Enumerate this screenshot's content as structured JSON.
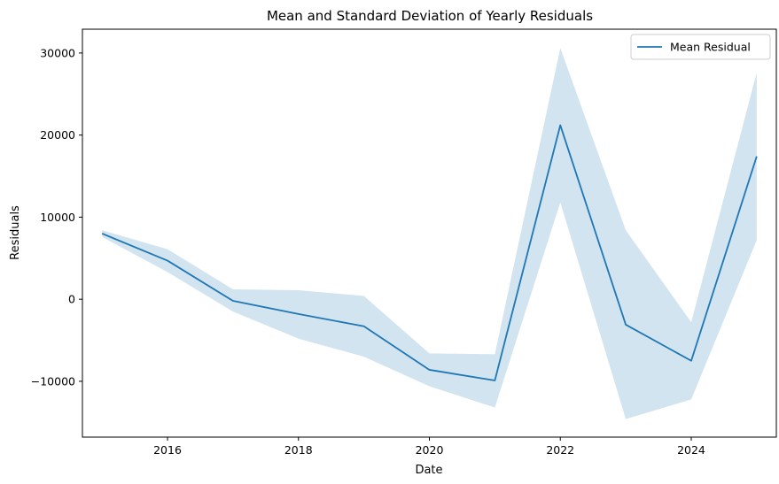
{
  "chart_data": {
    "type": "line",
    "title": "Mean and Standard Deviation of Yearly Residuals",
    "xlabel": "Date",
    "ylabel": "Residuals",
    "x": [
      2015,
      2016,
      2017,
      2018,
      2019,
      2020,
      2021,
      2022,
      2023,
      2024,
      2025
    ],
    "series": [
      {
        "name": "Mean Residual",
        "color": "#1f77b4",
        "values": [
          8000,
          4700,
          -200,
          -1800,
          -3300,
          -8600,
          -9900,
          21200,
          -3100,
          -7500,
          17400
        ],
        "band_upper": [
          8400,
          6100,
          1200,
          1100,
          400,
          -6600,
          -6700,
          30600,
          8400,
          -2800,
          27600
        ],
        "band_lower": [
          7600,
          3300,
          -1500,
          -4800,
          -7000,
          -10600,
          -13200,
          11800,
          -14600,
          -12200,
          7200
        ],
        "band_color": "#1f77b4",
        "band_opacity": 0.2
      }
    ],
    "xlim": [
      2014.7,
      2025.3
    ],
    "ylim": [
      -16800,
      32900
    ],
    "xticks": [
      2016,
      2018,
      2020,
      2022,
      2024
    ],
    "xtick_labels": [
      "2016",
      "2018",
      "2020",
      "2022",
      "2024"
    ],
    "yticks": [
      -10000,
      0,
      10000,
      20000,
      30000
    ],
    "ytick_labels": [
      "−10000",
      "0",
      "10000",
      "20000",
      "30000"
    ],
    "grid": false,
    "legend_position": "top-right"
  }
}
